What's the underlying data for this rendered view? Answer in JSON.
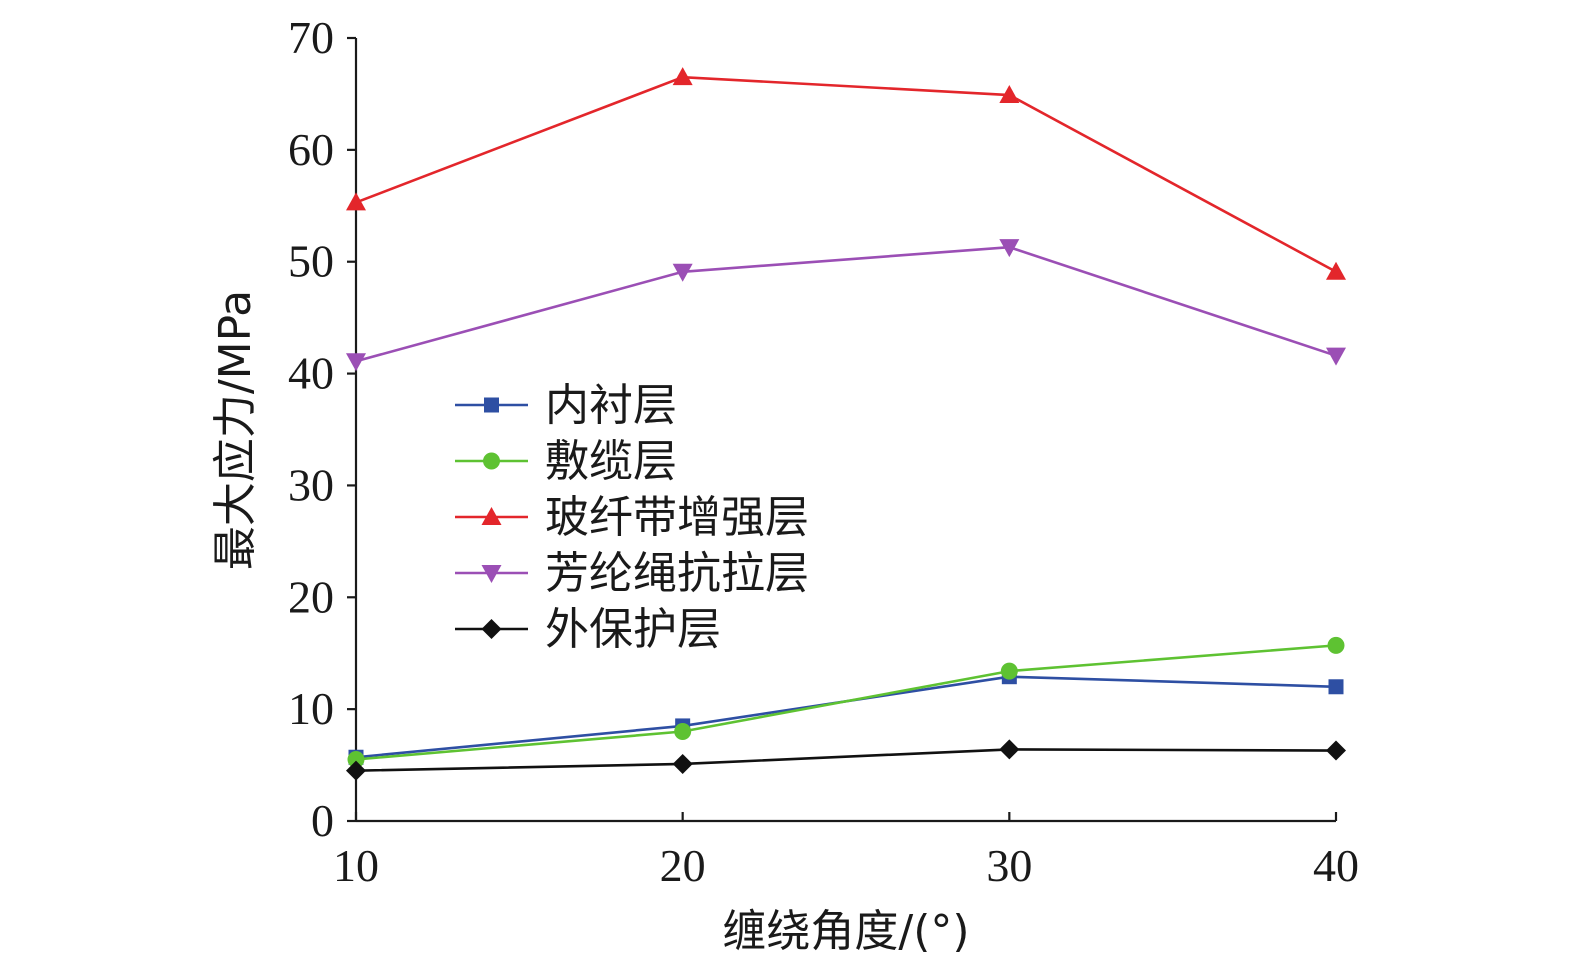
{
  "chart_data": {
    "type": "line",
    "title": "",
    "xlabel": "缠绕角度/(°)",
    "ylabel": "最大应力/MPa",
    "x": [
      10,
      20,
      30,
      40
    ],
    "xticks": [
      "10",
      "20",
      "30",
      "40"
    ],
    "yticks": [
      "0",
      "10",
      "20",
      "30",
      "40",
      "50",
      "60",
      "70"
    ],
    "xlim": [
      10,
      40
    ],
    "ylim": [
      0,
      70
    ],
    "grid": false,
    "legend_position": "center-left",
    "series": [
      {
        "name": "内衬层",
        "values": [
          5.7,
          8.5,
          12.9,
          12.0
        ],
        "color": "#2e4fa3",
        "marker": "square"
      },
      {
        "name": "敷缆层",
        "values": [
          5.5,
          8.0,
          13.4,
          15.7
        ],
        "color": "#5ec232",
        "marker": "circle"
      },
      {
        "name": "玻纤带增强层",
        "values": [
          55.3,
          66.5,
          64.9,
          49.1
        ],
        "color": "#e3262b",
        "marker": "triangle-up"
      },
      {
        "name": "芳纶绳抗拉层",
        "values": [
          41.1,
          49.1,
          51.3,
          41.6
        ],
        "color": "#9b4fb5",
        "marker": "triangle-down"
      },
      {
        "name": "外保护层",
        "values": [
          4.5,
          5.1,
          6.4,
          6.3
        ],
        "color": "#111111",
        "marker": "diamond"
      }
    ]
  }
}
